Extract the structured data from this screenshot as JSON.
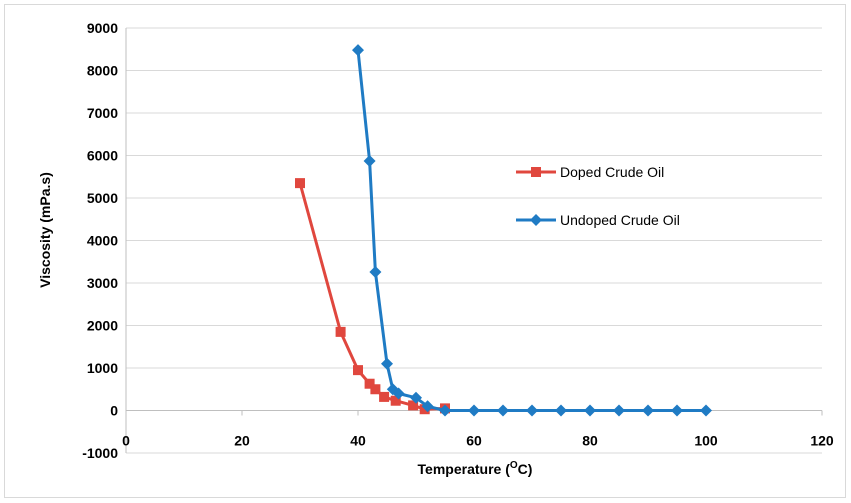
{
  "chart_data": {
    "type": "line",
    "xlabel": "Temperature (",
    "xlabel_sup": "O",
    "xlabel_unit": "C)",
    "ylabel": "Viscosity (mPa.s)",
    "xlim": [
      0,
      120
    ],
    "ylim": [
      -1000,
      9000
    ],
    "xticks": [
      0,
      20,
      40,
      60,
      80,
      100,
      120
    ],
    "yticks": [
      -1000,
      0,
      1000,
      2000,
      3000,
      4000,
      5000,
      6000,
      7000,
      8000,
      9000
    ],
    "grid": "horizontal",
    "legend_position": "right",
    "series": [
      {
        "name": "Doped Crude Oil",
        "color": "#e0473e",
        "marker": "square",
        "x": [
          30,
          37,
          40,
          42,
          43,
          44.5,
          46.5,
          49.5,
          51.5,
          55
        ],
        "y": [
          5350,
          1850,
          950,
          630,
          500,
          320,
          230,
          120,
          30,
          50
        ]
      },
      {
        "name": "Undoped Crude Oil",
        "color": "#1f7bc4",
        "marker": "diamond",
        "x": [
          40,
          42,
          43,
          45,
          46,
          47,
          50,
          52,
          55,
          60,
          65,
          70,
          75,
          80,
          85,
          90,
          95,
          100
        ],
        "y": [
          8480,
          5870,
          3260,
          1100,
          500,
          400,
          300,
          100,
          0,
          0,
          0,
          0,
          0,
          0,
          0,
          0,
          0,
          0
        ]
      }
    ]
  }
}
